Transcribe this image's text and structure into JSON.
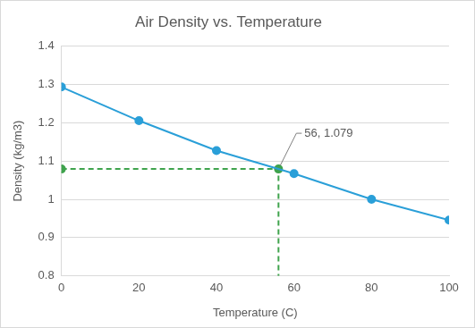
{
  "chart_data": {
    "type": "line",
    "title": "Air Density vs. Temperature",
    "x_label": "Temperature (C)",
    "y_label": "Density (kg/m3)",
    "x": [
      0,
      20,
      40,
      60,
      80,
      100
    ],
    "series": [
      {
        "color": "#2a9fd8",
        "marker": "circle",
        "line_style": "solid",
        "values": [
          1.293,
          1.205,
          1.127,
          1.067,
          1.0,
          0.946
        ]
      }
    ],
    "annotations": [
      {
        "text": "56, 1.079",
        "x": 56,
        "y": 1.079,
        "color": "#3fa34d",
        "marker": "circle",
        "line_style": "dashed"
      }
    ],
    "xlim": [
      0,
      100
    ],
    "xticks": [
      0,
      20,
      40,
      60,
      80,
      100
    ],
    "ylim": [
      0.8,
      1.4
    ],
    "yticks": [
      0.8,
      0.9,
      1,
      1.1,
      1.2,
      1.3,
      1.4
    ],
    "grid": true
  }
}
